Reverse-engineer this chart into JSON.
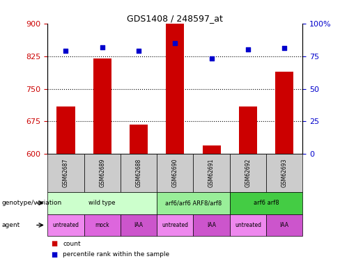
{
  "title": "GDS1408 / 248597_at",
  "samples": [
    "GSM62687",
    "GSM62689",
    "GSM62688",
    "GSM62690",
    "GSM62691",
    "GSM62692",
    "GSM62693"
  ],
  "count_values": [
    710,
    820,
    668,
    900,
    620,
    710,
    790
  ],
  "percentile_values": [
    79,
    82,
    79,
    85,
    73,
    80,
    81
  ],
  "ylim_left": [
    600,
    900
  ],
  "ylim_right": [
    0,
    100
  ],
  "yticks_left": [
    600,
    675,
    750,
    825,
    900
  ],
  "yticks_right": [
    0,
    25,
    50,
    75,
    100
  ],
  "bar_color": "#cc0000",
  "dot_color": "#0000cc",
  "genotype_groups": [
    {
      "label": "wild type",
      "span": [
        0,
        3
      ],
      "color": "#ccffcc"
    },
    {
      "label": "arf6/arf6 ARF8/arf8",
      "span": [
        3,
        5
      ],
      "color": "#99ee99"
    },
    {
      "label": "arf6 arf8",
      "span": [
        5,
        7
      ],
      "color": "#44cc44"
    }
  ],
  "agent_groups": [
    {
      "label": "untreated",
      "span": [
        0,
        1
      ],
      "color": "#ee88ee"
    },
    {
      "label": "mock",
      "span": [
        1,
        2
      ],
      "color": "#dd66dd"
    },
    {
      "label": "IAA",
      "span": [
        2,
        3
      ],
      "color": "#cc55cc"
    },
    {
      "label": "untreated",
      "span": [
        3,
        4
      ],
      "color": "#ee88ee"
    },
    {
      "label": "IAA",
      "span": [
        4,
        5
      ],
      "color": "#cc55cc"
    },
    {
      "label": "untreated",
      "span": [
        5,
        6
      ],
      "color": "#ee88ee"
    },
    {
      "label": "IAA",
      "span": [
        6,
        7
      ],
      "color": "#cc55cc"
    }
  ],
  "legend_count_label": "count",
  "legend_pct_label": "percentile rank within the sample",
  "left_axis_color": "#cc0000",
  "right_axis_color": "#0000cc",
  "genotype_label": "genotype/variation",
  "agent_label": "agent"
}
